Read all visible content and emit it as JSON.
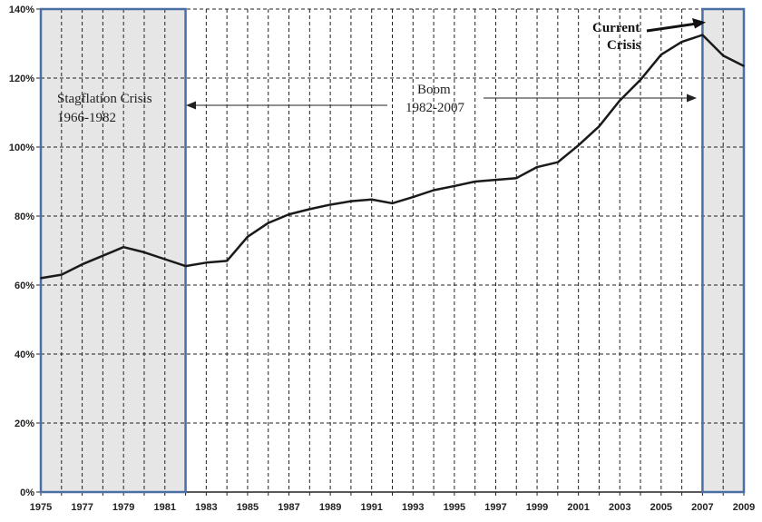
{
  "chart_data": {
    "type": "line",
    "title": "",
    "xlabel": "",
    "ylabel": "",
    "xlim": [
      1975,
      2009
    ],
    "ylim": [
      0,
      140
    ],
    "y_tick_values": [
      0,
      20,
      40,
      60,
      80,
      100,
      120,
      140
    ],
    "y_tick_labels": [
      "0%",
      "20%",
      "40%",
      "60%",
      "80%",
      "100%",
      "120%",
      "140%"
    ],
    "x_tick_labels": [
      "1975",
      "1977",
      "1979",
      "1981",
      "1983",
      "1985",
      "1987",
      "1989",
      "1991",
      "1993",
      "1995",
      "1997",
      "1999",
      "2001",
      "2003",
      "2005",
      "2007",
      "2009"
    ],
    "grid": true,
    "series": [
      {
        "x": [
          1975,
          1976,
          1977,
          1978,
          1979,
          1980,
          1981,
          1982,
          1983,
          1984,
          1985,
          1986,
          1987,
          1988,
          1989,
          1990,
          1991,
          1992,
          1993,
          1994,
          1995,
          1996,
          1997,
          1998,
          1999,
          2000,
          2001,
          2002,
          2003,
          2004,
          2005,
          2006,
          2007,
          2008,
          2009
        ],
        "values": [
          62,
          63,
          66,
          68.5,
          71,
          69.5,
          67.5,
          65.5,
          66.5,
          67,
          74,
          78,
          80.5,
          82,
          83.3,
          84.3,
          84.8,
          83.7,
          85.5,
          87.5,
          88.7,
          90,
          90.5,
          91,
          94.2,
          95.6,
          100.5,
          106,
          113.5,
          119.5,
          126.8,
          130.5,
          132.5,
          126.5,
          123.5
        ]
      }
    ],
    "shaded_periods": [
      {
        "start": 1975,
        "end": 1982
      },
      {
        "start": 2007,
        "end": 2009
      }
    ],
    "annotations": {
      "stagflation": {
        "line1": "Stagflation Crisis",
        "line2": "1966-1982"
      },
      "boom": {
        "line1": "Boom",
        "line2": "1982-2007"
      },
      "current": {
        "line1": "Current",
        "line2": "Crisis"
      }
    },
    "colors": {
      "line": "#1a1a1a",
      "shade": "#e6e6e6",
      "shade_border": "#4a6fa5",
      "grid": "#222222"
    }
  }
}
